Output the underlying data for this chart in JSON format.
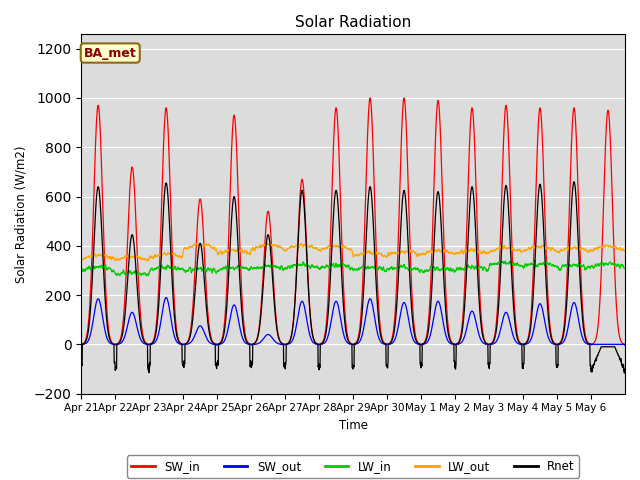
{
  "title": "Solar Radiation",
  "ylabel": "Solar Radiation (W/m2)",
  "xlabel": "Time",
  "ylim": [
    -200,
    1260
  ],
  "yticks": [
    -200,
    0,
    200,
    400,
    600,
    800,
    1000,
    1200
  ],
  "label": "BA_met",
  "legend_entries": [
    "SW_in",
    "SW_out",
    "LW_in",
    "LW_out",
    "Rnet"
  ],
  "line_colors": [
    "#ff0000",
    "#0000ff",
    "#00cc00",
    "#ffa500",
    "#000000"
  ],
  "background_color": "#dcdcdc",
  "n_days": 16,
  "xticklabels": [
    "Apr 21",
    "Apr 22",
    "Apr 23",
    "Apr 24",
    "Apr 25",
    "Apr 26",
    "Apr 27",
    "Apr 28",
    "Apr 29",
    "Apr 30",
    "May 1",
    "May 2",
    "May 3",
    "May 4",
    "May 5",
    "May 6"
  ],
  "sw_in_peaks": [
    970,
    720,
    960,
    590,
    930,
    540,
    670,
    960,
    1000,
    1000,
    990,
    960,
    970,
    960,
    960,
    950
  ],
  "sw_out_peaks": [
    185,
    130,
    190,
    75,
    160,
    40,
    175,
    175,
    185,
    170,
    175,
    135,
    130,
    165,
    170,
    0
  ],
  "lw_in_base": [
    300,
    280,
    300,
    295,
    300,
    305,
    310,
    310,
    300,
    300,
    295,
    300,
    320,
    315,
    310,
    315
  ],
  "lw_out_base": [
    345,
    340,
    350,
    385,
    365,
    385,
    385,
    380,
    355,
    360,
    365,
    365,
    375,
    380,
    375,
    380
  ],
  "rnet_peaks": [
    640,
    445,
    655,
    410,
    600,
    445,
    625,
    625,
    640,
    625,
    620,
    640,
    645,
    650,
    660,
    0
  ],
  "rnet_night": [
    -70,
    -100,
    -80,
    -80,
    -75,
    -80,
    -80,
    -85,
    -80,
    -80,
    -70,
    -75,
    -80,
    -75,
    -80,
    -100
  ]
}
